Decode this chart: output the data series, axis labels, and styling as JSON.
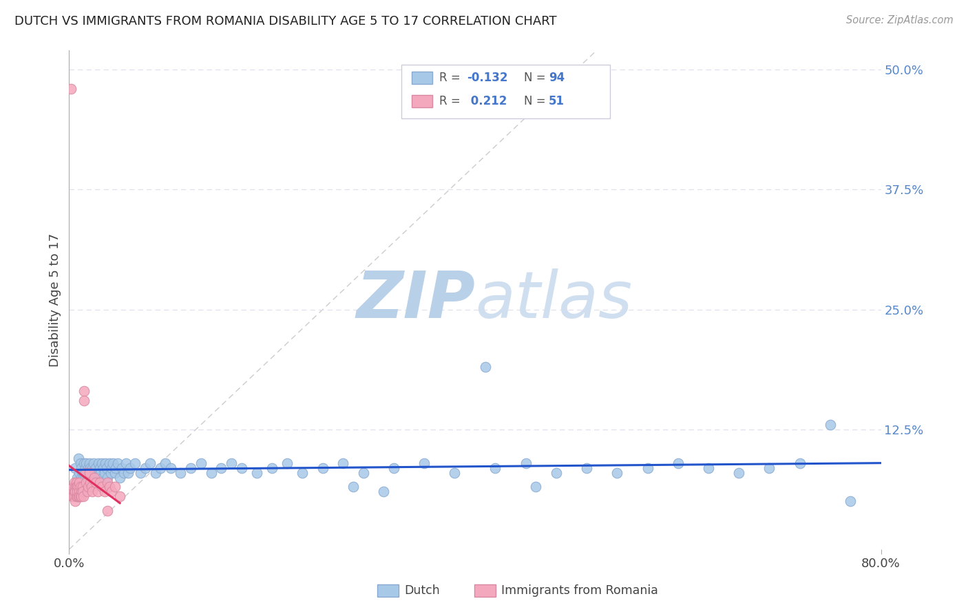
{
  "title": "DUTCH VS IMMIGRANTS FROM ROMANIA DISABILITY AGE 5 TO 17 CORRELATION CHART",
  "source": "Source: ZipAtlas.com",
  "ylabel": "Disability Age 5 to 17",
  "xlim": [
    0.0,
    0.8
  ],
  "ylim": [
    0.0,
    0.52
  ],
  "yticks_right": [
    0.0,
    0.125,
    0.25,
    0.375,
    0.5
  ],
  "yticklabels_right": [
    "",
    "12.5%",
    "25.0%",
    "37.5%",
    "50.0%"
  ],
  "dutch_color": "#a8c8e8",
  "romania_color": "#f4a8be",
  "dutch_line_color": "#2255cc",
  "romania_line_color": "#e03060",
  "dutch_scatter_x": [
    0.006,
    0.008,
    0.009,
    0.01,
    0.01,
    0.011,
    0.012,
    0.012,
    0.013,
    0.014,
    0.015,
    0.015,
    0.016,
    0.016,
    0.017,
    0.018,
    0.018,
    0.019,
    0.02,
    0.02,
    0.021,
    0.022,
    0.022,
    0.023,
    0.024,
    0.025,
    0.026,
    0.027,
    0.028,
    0.029,
    0.03,
    0.031,
    0.032,
    0.033,
    0.034,
    0.035,
    0.036,
    0.037,
    0.038,
    0.04,
    0.041,
    0.042,
    0.043,
    0.045,
    0.046,
    0.048,
    0.05,
    0.052,
    0.054,
    0.056,
    0.058,
    0.06,
    0.065,
    0.07,
    0.075,
    0.08,
    0.085,
    0.09,
    0.095,
    0.1,
    0.11,
    0.12,
    0.13,
    0.14,
    0.15,
    0.16,
    0.17,
    0.185,
    0.2,
    0.215,
    0.23,
    0.25,
    0.27,
    0.29,
    0.32,
    0.35,
    0.38,
    0.42,
    0.45,
    0.48,
    0.51,
    0.54,
    0.57,
    0.6,
    0.63,
    0.66,
    0.69,
    0.72,
    0.75,
    0.77,
    0.28,
    0.31,
    0.46,
    0.41
  ],
  "dutch_scatter_y": [
    0.085,
    0.075,
    0.095,
    0.07,
    0.08,
    0.09,
    0.075,
    0.085,
    0.08,
    0.075,
    0.09,
    0.08,
    0.075,
    0.085,
    0.09,
    0.08,
    0.07,
    0.085,
    0.08,
    0.09,
    0.085,
    0.075,
    0.08,
    0.085,
    0.09,
    0.08,
    0.085,
    0.075,
    0.08,
    0.09,
    0.085,
    0.08,
    0.09,
    0.075,
    0.085,
    0.08,
    0.09,
    0.085,
    0.075,
    0.09,
    0.08,
    0.085,
    0.09,
    0.08,
    0.085,
    0.09,
    0.075,
    0.085,
    0.08,
    0.09,
    0.08,
    0.085,
    0.09,
    0.08,
    0.085,
    0.09,
    0.08,
    0.085,
    0.09,
    0.085,
    0.08,
    0.085,
    0.09,
    0.08,
    0.085,
    0.09,
    0.085,
    0.08,
    0.085,
    0.09,
    0.08,
    0.085,
    0.09,
    0.08,
    0.085,
    0.09,
    0.08,
    0.085,
    0.09,
    0.08,
    0.085,
    0.08,
    0.085,
    0.09,
    0.085,
    0.08,
    0.085,
    0.09,
    0.13,
    0.05,
    0.065,
    0.06,
    0.065,
    0.19
  ],
  "romania_scatter_x": [
    0.002,
    0.003,
    0.003,
    0.004,
    0.004,
    0.005,
    0.005,
    0.005,
    0.006,
    0.006,
    0.006,
    0.007,
    0.007,
    0.007,
    0.008,
    0.008,
    0.008,
    0.009,
    0.009,
    0.01,
    0.01,
    0.01,
    0.011,
    0.011,
    0.012,
    0.012,
    0.013,
    0.013,
    0.014,
    0.015,
    0.015,
    0.016,
    0.017,
    0.018,
    0.019,
    0.02,
    0.021,
    0.022,
    0.023,
    0.025,
    0.026,
    0.028,
    0.03,
    0.032,
    0.035,
    0.038,
    0.04,
    0.042,
    0.045,
    0.05,
    0.038
  ],
  "romania_scatter_y": [
    0.48,
    0.06,
    0.055,
    0.065,
    0.055,
    0.07,
    0.06,
    0.055,
    0.065,
    0.06,
    0.05,
    0.07,
    0.065,
    0.055,
    0.065,
    0.055,
    0.06,
    0.065,
    0.055,
    0.07,
    0.06,
    0.055,
    0.065,
    0.055,
    0.06,
    0.055,
    0.065,
    0.06,
    0.055,
    0.165,
    0.155,
    0.08,
    0.07,
    0.06,
    0.065,
    0.08,
    0.07,
    0.065,
    0.06,
    0.075,
    0.07,
    0.06,
    0.07,
    0.065,
    0.06,
    0.07,
    0.065,
    0.06,
    0.065,
    0.055,
    0.04
  ],
  "romania_trend_x": [
    0.002,
    0.05
  ],
  "watermark_zip": "ZIP",
  "watermark_atlas": "atlas",
  "watermark_color": "#ccdff5",
  "background_color": "#ffffff",
  "grid_color": "#e0e0ee"
}
